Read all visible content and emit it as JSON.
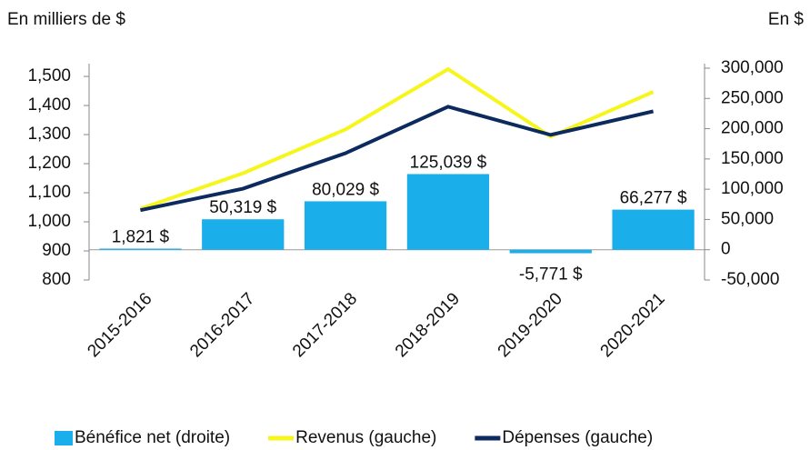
{
  "chart_data": {
    "type": "bar_line",
    "y_label": "En milliers de $",
    "y2_label": "En $",
    "categories": [
      "2015-2016",
      "2016-2017",
      "2017-2018",
      "2018-2019",
      "2019-2020",
      "2020-2021"
    ],
    "ylim": [
      800,
      1544
    ],
    "yticks": [
      800,
      900,
      {
        "value": 1000,
        "label": "1,000"
      },
      {
        "value": 1100,
        "label": "1,100"
      },
      {
        "value": 1200,
        "label": "1,200"
      },
      {
        "value": 1300,
        "label": "1,300"
      },
      {
        "value": 1400,
        "label": "1,400"
      },
      {
        "value": 1500,
        "label": "1,500"
      }
    ],
    "y2lim": [
      -50000,
      307500
    ],
    "y2ticks": [
      {
        "value": -50000,
        "label": "-50,000"
      },
      0,
      {
        "value": 50000,
        "label": "50,000"
      },
      {
        "value": 100000,
        "label": "100,000"
      },
      {
        "value": 150000,
        "label": "150,000"
      },
      {
        "value": 200000,
        "label": "200,000"
      },
      {
        "value": 250000,
        "label": "250,000"
      },
      {
        "value": 300000,
        "label": "300,000"
      }
    ],
    "series": [
      {
        "name": "Bénéfice net (droite)",
        "kind": "bar",
        "axis": "y2",
        "color": "#1aaeea",
        "values": [
          1821,
          50319,
          80029,
          125039,
          -5771,
          66277
        ],
        "value_labels": [
          "1,821 $",
          "50,319 $",
          "80,029 $",
          "125,039 $",
          "-5,771 $",
          "66,277 $"
        ]
      },
      {
        "name": "Revenus (gauche)",
        "kind": "line",
        "color": "#f6f61c",
        "values": [
          1045,
          1167,
          1318,
          1525,
          1293,
          1447
        ]
      },
      {
        "name": "Dépenses (gauche)",
        "kind": "line",
        "color": "#0c2a5e",
        "values": [
          1040,
          1114,
          1236,
          1396,
          1299,
          1380
        ]
      }
    ]
  }
}
